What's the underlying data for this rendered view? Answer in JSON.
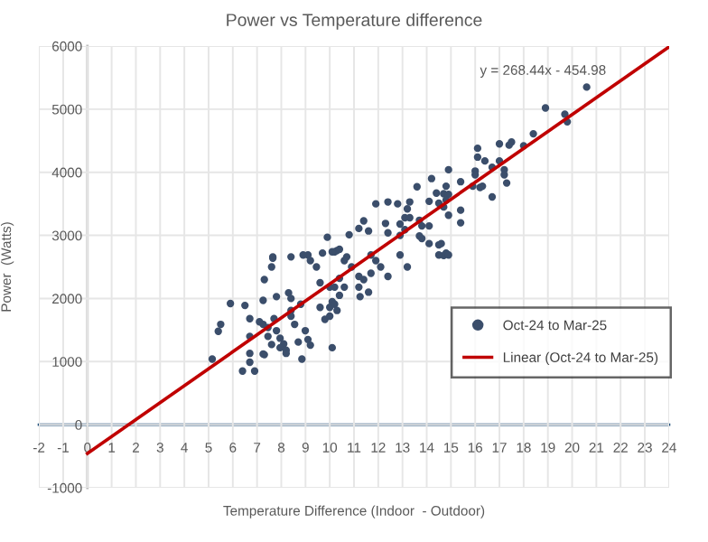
{
  "chart_data": {
    "type": "scatter",
    "title": "Power vs Temperature difference",
    "xlabel": "Temperature Difference (Indoor  - Outdoor)",
    "ylabel": "Power  (Watts)",
    "annotations": [
      "y = 268.44x - 454.98"
    ],
    "xlim": [
      -2,
      24
    ],
    "xticks": [
      -2,
      -1,
      0,
      1,
      2,
      3,
      4,
      5,
      6,
      7,
      8,
      9,
      10,
      11,
      12,
      13,
      14,
      15,
      16,
      17,
      18,
      19,
      20,
      21,
      22,
      23,
      24
    ],
    "ylim": [
      -1000,
      6000
    ],
    "yticks": [
      -1000,
      0,
      1000,
      2000,
      3000,
      4000,
      5000,
      6000
    ],
    "grid": true,
    "legend": "bottom right",
    "marker": "circle",
    "series": [
      {
        "name": "Oct-24 to Mar-25",
        "color": "#3b4e6b",
        "x": [
          20.6,
          18.9,
          19.7,
          19.8,
          18.4,
          18.0,
          17.5,
          17.4,
          17.0,
          16.1,
          16.1,
          16.4,
          17.0,
          17.2,
          17.2,
          16.7,
          17.3,
          16.0,
          16.0,
          16.2,
          15.9,
          16.3,
          16.7,
          14.9,
          14.2,
          14.8,
          14.7,
          14.9,
          14.8,
          14.4,
          15.4,
          14.9,
          15.4,
          15.4,
          13.6,
          14.1,
          14.5,
          14.7,
          13.3,
          13.2,
          13.1,
          12.8,
          11.9,
          12.4,
          11.6,
          11.4,
          12.3,
          12.4,
          12.9,
          13.1,
          12.9,
          13.3,
          13.7,
          13.8,
          14.1,
          13.7,
          13.8,
          14.1,
          14.5,
          14.6,
          14.7,
          10.7,
          10.8,
          11.2,
          9.9,
          10.2,
          10.3,
          9.1,
          8.4,
          7.65,
          5.15,
          5.4,
          5.5,
          5.9,
          6.5,
          6.7,
          6.7,
          6.4,
          6.7,
          6.7,
          6.9,
          7.1,
          7.25,
          7.45,
          7.25,
          7.3,
          7.3,
          7.25,
          7.6,
          7.65,
          7.8,
          7.7,
          7.8,
          7.45,
          7.6,
          7.95,
          8.1,
          8.2,
          8.2,
          7.95,
          8.3,
          8.4,
          8.4,
          8.4,
          8.55,
          8.7,
          8.8,
          8.85,
          8.99,
          9.1,
          9.2,
          8.9,
          9.2,
          9.45,
          9.6,
          9.7,
          9.6,
          10.0,
          9.8,
          10.0,
          10.1,
          10.2,
          10.3,
          10.1,
          10.0,
          10.2,
          10.4,
          10.1,
          10.4,
          10.6,
          10.4,
          10.6,
          10.9,
          11.2,
          11.2,
          11.7,
          11.7,
          11.9,
          12.1,
          12.4,
          12.9,
          11.4,
          11.6,
          11.25,
          13.2,
          14.5,
          14.8,
          14.9
        ],
        "values": [
          5350,
          5020,
          4920,
          4800,
          4610,
          4420,
          4480,
          4430,
          4450,
          4380,
          4240,
          4180,
          4180,
          4040,
          3960,
          4080,
          3830,
          4020,
          3960,
          3760,
          3780,
          3780,
          3610,
          4040,
          3900,
          3780,
          3660,
          3650,
          3560,
          3670,
          3850,
          3320,
          3400,
          3200,
          3770,
          3540,
          3510,
          3450,
          3530,
          3420,
          3280,
          3500,
          3500,
          3530,
          3070,
          3230,
          3190,
          3040,
          3180,
          3090,
          3000,
          3280,
          3240,
          3150,
          3150,
          2990,
          2950,
          2870,
          2850,
          2870,
          2680,
          2660,
          3010,
          3110,
          2970,
          2740,
          2760,
          2690,
          2660,
          2660,
          1040,
          1480,
          1590,
          1920,
          1890,
          1680,
          1400,
          850,
          990,
          1130,
          850,
          1630,
          1590,
          1540,
          1120,
          1110,
          2300,
          1970,
          2500,
          2640,
          2030,
          1680,
          1490,
          1400,
          1270,
          1370,
          1280,
          1180,
          1130,
          1220,
          2090,
          2000,
          1810,
          1720,
          1590,
          1310,
          1910,
          1040,
          1490,
          1350,
          1260,
          2690,
          2600,
          2500,
          2250,
          2720,
          1860,
          1860,
          1670,
          1720,
          1950,
          1910,
          1810,
          1220,
          2180,
          2180,
          2320,
          2740,
          2780,
          2600,
          2050,
          2180,
          2500,
          2350,
          2180,
          2690,
          2400,
          2600,
          2500,
          2350,
          2690,
          2300,
          2100,
          2030,
          2500,
          2690,
          2720,
          2690
        ]
      },
      {
        "name": "Linear (Oct-24 to Mar-25)",
        "type": "line",
        "color": "#c00000",
        "marker": "none",
        "line_style": "solid",
        "x": [
          0,
          24
        ],
        "values": [
          -455,
          5988
        ]
      }
    ]
  }
}
